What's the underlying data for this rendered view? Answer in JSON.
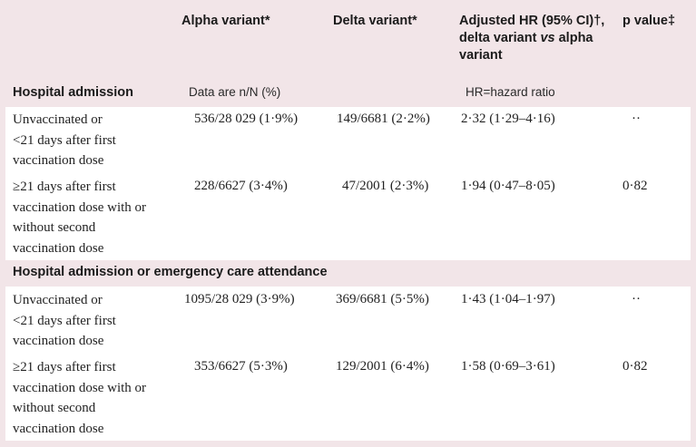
{
  "header": {
    "col_alpha": "Alpha variant*",
    "col_delta": "Delta variant*",
    "col_hr": [
      "Adjusted HR (95% CI)†,",
      "delta variant vs alpha",
      "variant"
    ],
    "col_p": "p value‡"
  },
  "sections": [
    {
      "title": "Hospital admission",
      "note_data": "Data are n/N (%)",
      "note_hr": "HR=hazard ratio",
      "rows": [
        {
          "label": [
            "Unvaccinated or",
            "<21 days after first",
            "vaccination dose"
          ],
          "alpha": "536/28 029 (1·9%)",
          "delta": "149/6681 (2·2%)",
          "hr": "2·32 (1·29–4·16)",
          "p": "··"
        },
        {
          "label": [
            "≥21 days after first",
            "vaccination dose with or",
            "without second",
            "vaccination dose"
          ],
          "alpha": "228/6627 (3·4%)",
          "delta": "47/2001 (2·3%)",
          "hr": "1·94 (0·47–8·05)",
          "p": "0·82"
        }
      ]
    },
    {
      "title": "Hospital admission or emergency care attendance",
      "rows": [
        {
          "label": [
            "Unvaccinated or",
            "<21 days after first",
            "vaccination dose"
          ],
          "alpha": "1095/28 029 (3·9%)",
          "delta": "369/6681 (5·5%)",
          "hr": "1·43 (1·04–1·97)",
          "p": "··"
        },
        {
          "label": [
            "≥21 days after first",
            "vaccination dose with or",
            "without second",
            "vaccination dose"
          ],
          "alpha": "353/6627 (5·3%)",
          "delta": "129/2001 (6·4%)",
          "hr": "1·58 (0·69–3·61)",
          "p": "0·82"
        }
      ]
    }
  ]
}
